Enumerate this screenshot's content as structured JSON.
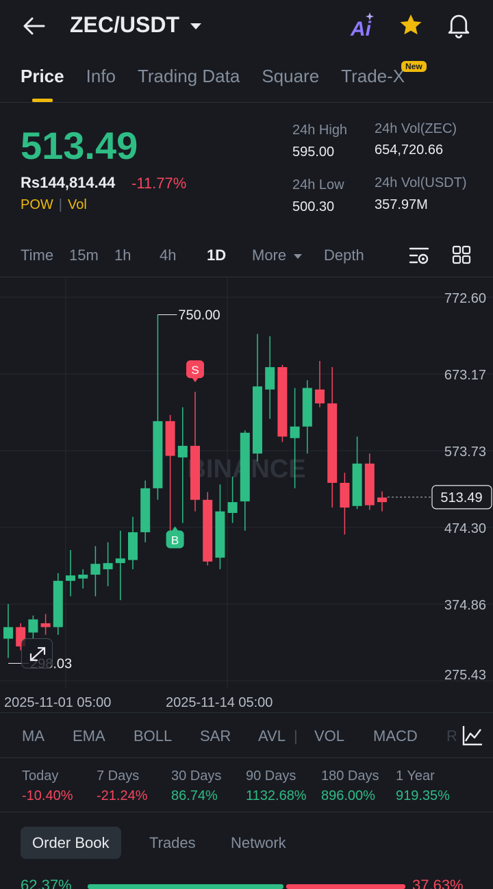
{
  "header": {
    "pair": "ZEC/USDT",
    "ai_label": "Ai"
  },
  "tabs": [
    {
      "label": "Price"
    },
    {
      "label": "Info"
    },
    {
      "label": "Trading Data"
    },
    {
      "label": "Square"
    },
    {
      "label": "Trade-X"
    }
  ],
  "new_badge": "New",
  "price": {
    "last": "513.49",
    "fiat": "Rs144,814.44",
    "change": "-11.77%",
    "tag1": "POW",
    "tag2": "Vol"
  },
  "stats": {
    "high_label": "24h High",
    "high": "595.00",
    "low_label": "24h Low",
    "low": "500.30",
    "vol_base_label": "24h Vol(ZEC)",
    "vol_base": "654,720.66",
    "vol_quote_label": "24h Vol(USDT)",
    "vol_quote": "357.97M"
  },
  "timeframes": [
    "Time",
    "15m",
    "1h",
    "4h",
    "1D",
    "More",
    "Depth"
  ],
  "chart_data": {
    "type": "candlestick",
    "watermark": "BINANCE",
    "y_ticks": [
      "772.60",
      "673.17",
      "573.73",
      "474.30",
      "374.86",
      "275.43"
    ],
    "ylim": [
      275.43,
      772.6
    ],
    "x_ticks": [
      "2025-11-01 05:00",
      "2025-11-14 05:00"
    ],
    "last_price": "513.49",
    "high_marker": "750.00",
    "low_marker": "298.03",
    "sell_marker": "S",
    "buy_marker": "B",
    "candles": [
      {
        "o": 330,
        "c": 345,
        "h": 375,
        "l": 305
      },
      {
        "o": 345,
        "c": 320,
        "h": 350,
        "l": 315
      },
      {
        "o": 338,
        "c": 355,
        "h": 360,
        "l": 330
      },
      {
        "o": 350,
        "c": 345,
        "h": 362,
        "l": 335
      },
      {
        "o": 345,
        "c": 405,
        "h": 415,
        "l": 335
      },
      {
        "o": 405,
        "c": 412,
        "h": 445,
        "l": 385
      },
      {
        "o": 408,
        "c": 413,
        "h": 420,
        "l": 395
      },
      {
        "o": 413,
        "c": 427,
        "h": 450,
        "l": 385
      },
      {
        "o": 420,
        "c": 428,
        "h": 455,
        "l": 398
      },
      {
        "o": 428,
        "c": 434,
        "h": 470,
        "l": 380
      },
      {
        "o": 432,
        "c": 468,
        "h": 488,
        "l": 420
      },
      {
        "o": 468,
        "c": 525,
        "h": 535,
        "l": 455
      },
      {
        "o": 525,
        "c": 612,
        "h": 750,
        "l": 510
      },
      {
        "o": 612,
        "c": 567,
        "h": 620,
        "l": 465
      },
      {
        "o": 565,
        "c": 580,
        "h": 630,
        "l": 480
      },
      {
        "o": 580,
        "c": 510,
        "h": 650,
        "l": 495
      },
      {
        "o": 510,
        "c": 430,
        "h": 520,
        "l": 425
      },
      {
        "o": 435,
        "c": 495,
        "h": 530,
        "l": 420
      },
      {
        "o": 493,
        "c": 507,
        "h": 540,
        "l": 480
      },
      {
        "o": 508,
        "c": 597,
        "h": 600,
        "l": 470
      },
      {
        "o": 570,
        "c": 657,
        "h": 725,
        "l": 560
      },
      {
        "o": 653,
        "c": 682,
        "h": 722,
        "l": 615
      },
      {
        "o": 682,
        "c": 592,
        "h": 685,
        "l": 585
      },
      {
        "o": 590,
        "c": 605,
        "h": 655,
        "l": 525
      },
      {
        "o": 605,
        "c": 655,
        "h": 665,
        "l": 570
      },
      {
        "o": 653,
        "c": 635,
        "h": 690,
        "l": 630
      },
      {
        "o": 635,
        "c": 532,
        "h": 682,
        "l": 500
      },
      {
        "o": 532,
        "c": 500,
        "h": 545,
        "l": 465
      },
      {
        "o": 502,
        "c": 557,
        "h": 592,
        "l": 498
      },
      {
        "o": 557,
        "c": 503,
        "h": 570,
        "l": 497
      },
      {
        "o": 513,
        "c": 507,
        "h": 521,
        "l": 495
      }
    ]
  },
  "indicators": [
    "MA",
    "EMA",
    "BOLL",
    "SAR",
    "AVL",
    "VOL",
    "MACD",
    "R"
  ],
  "performance": [
    {
      "label": "Today",
      "value": "-10.40%",
      "dir": "red"
    },
    {
      "label": "7 Days",
      "value": "-21.24%",
      "dir": "red"
    },
    {
      "label": "30 Days",
      "value": "86.74%",
      "dir": "green"
    },
    {
      "label": "90 Days",
      "value": "1132.68%",
      "dir": "green"
    },
    {
      "label": "180 Days",
      "value": "896.00%",
      "dir": "green"
    },
    {
      "label": "1 Year",
      "value": "919.35%",
      "dir": "green"
    }
  ],
  "bottom_tabs": [
    {
      "label": "Order Book"
    },
    {
      "label": "Trades"
    },
    {
      "label": "Network"
    }
  ],
  "order_ratio": {
    "bid": "62.37%",
    "ask": "37.63%",
    "bid_fraction": 0.6237
  }
}
